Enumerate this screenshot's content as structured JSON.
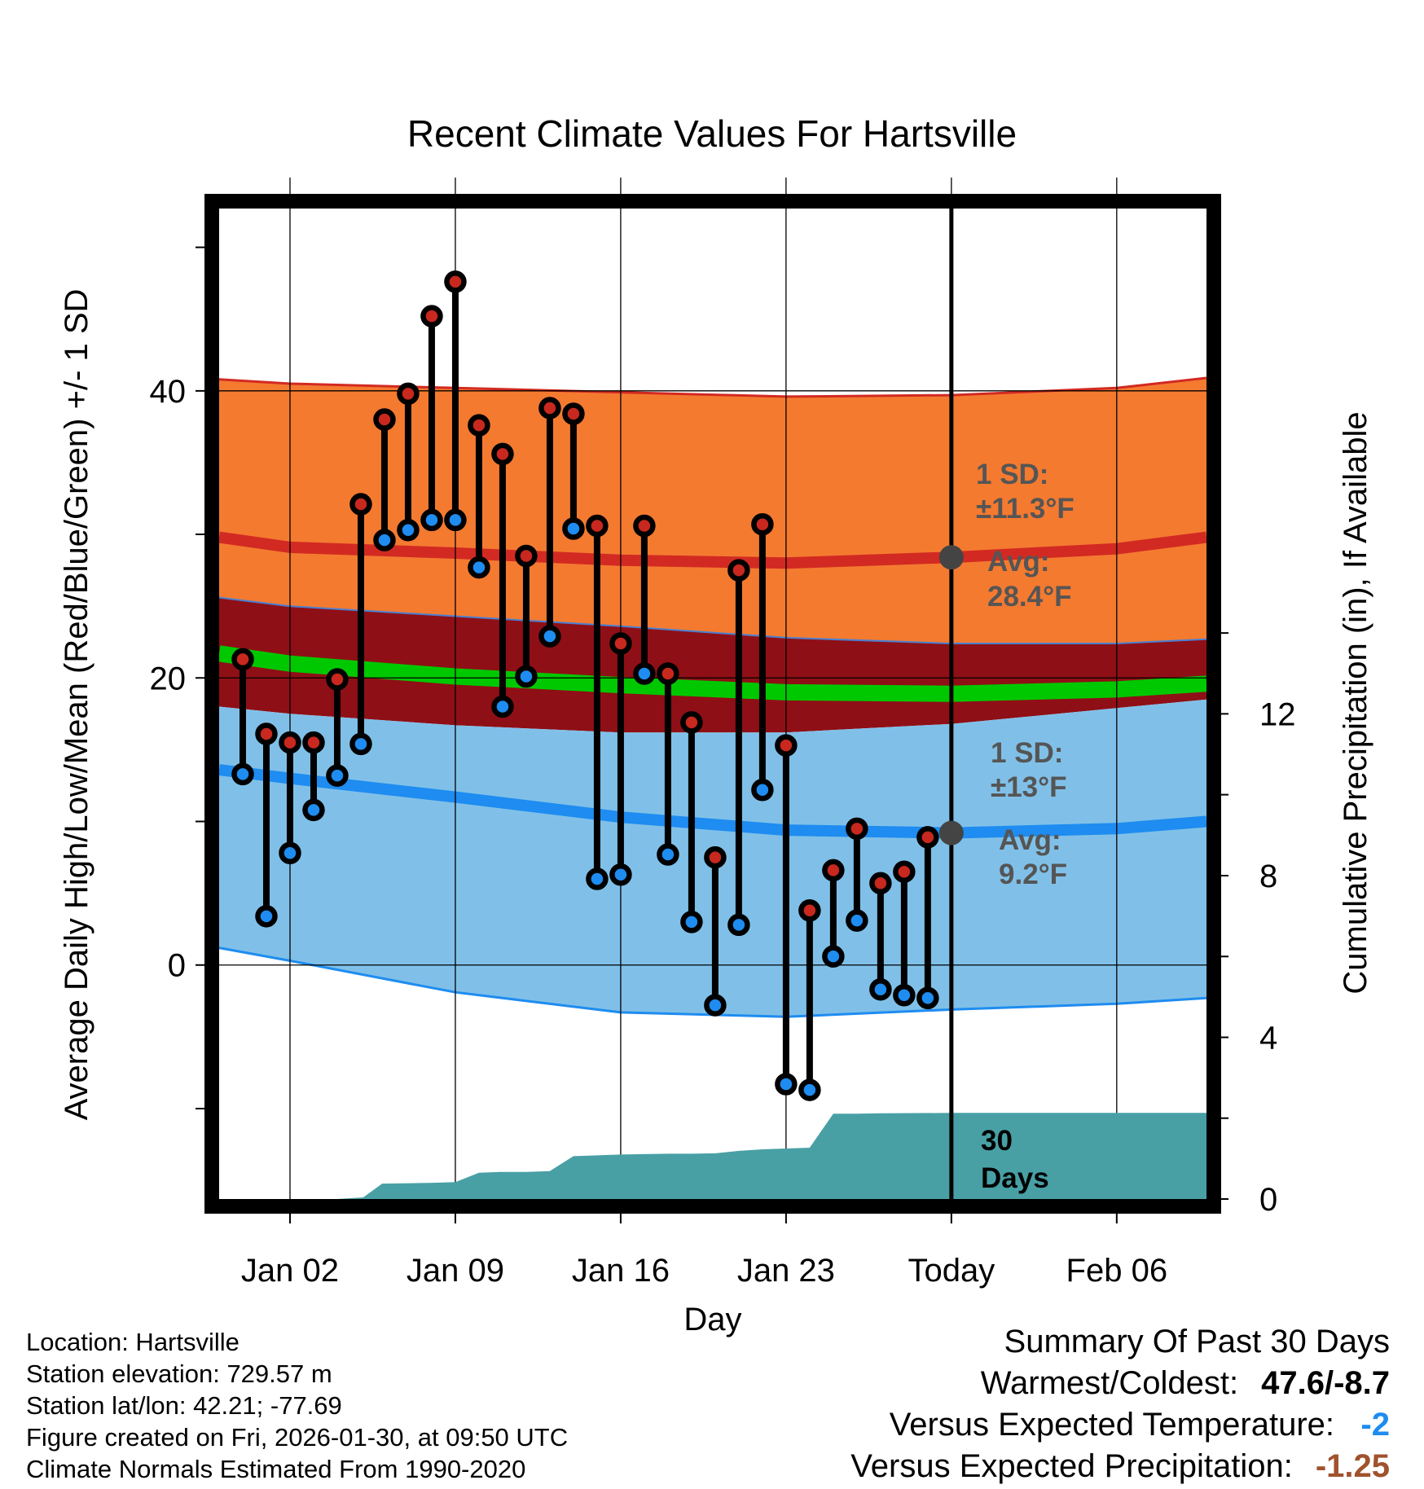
{
  "chart_data": {
    "type": "line",
    "title": "Recent Climate Values For Hartsville",
    "xlabel": "Day",
    "ylabel": "Average Daily High/Low/Mean (Red/Blue/Green) +/- 1 SD",
    "y2label": "Cumulative Precipitation (in), If Available",
    "x_range_days": [
      -1.0,
      40.8
    ],
    "ylim": [
      -16.3,
      52.7
    ],
    "y2lim": [
      0,
      24.5
    ],
    "y_ticks": [
      0,
      20,
      40
    ],
    "y2_ticks": [
      0,
      4,
      8,
      12
    ],
    "x_ticks": [
      {
        "day": 2,
        "label": "Jan 02"
      },
      {
        "day": 9,
        "label": "Jan 09"
      },
      {
        "day": 16,
        "label": "Jan 16"
      },
      {
        "day": 23,
        "label": "Jan 23"
      },
      {
        "day": 30,
        "label": "Today"
      },
      {
        "day": 37,
        "label": "Feb 06"
      }
    ],
    "today_day": 30,
    "normals": {
      "days": [
        -1.0,
        2,
        9,
        16,
        23,
        30,
        37,
        40.8
      ],
      "high_plus_sd": [
        40.8,
        40.5,
        40.2,
        39.9,
        39.6,
        39.7,
        40.2,
        40.9
      ],
      "high_avg": [
        29.8,
        29.1,
        28.7,
        28.2,
        28.0,
        28.4,
        29.0,
        29.8
      ],
      "high_minus_sd": [
        25.6,
        25.0,
        24.3,
        23.6,
        22.8,
        22.4,
        22.4,
        22.7
      ],
      "mean_avg": [
        21.7,
        21.0,
        20.1,
        19.5,
        19.0,
        18.9,
        19.2,
        19.6
      ],
      "low_plus_sd": [
        18.0,
        17.5,
        16.7,
        16.2,
        16.2,
        16.8,
        17.9,
        18.5
      ],
      "low_avg": [
        13.6,
        13.0,
        11.7,
        10.3,
        9.4,
        9.2,
        9.5,
        10.0
      ],
      "low_minus_sd": [
        1.2,
        0.3,
        -1.9,
        -3.3,
        -3.6,
        -3.1,
        -2.7,
        -2.3
      ]
    },
    "series": [
      {
        "name": "Daily High",
        "color": "#c8281e",
        "x": [
          0,
          1,
          2,
          3,
          4,
          5,
          6,
          7,
          8,
          9,
          10,
          11,
          12,
          13,
          14,
          15,
          16,
          17,
          18,
          19,
          20,
          21,
          22,
          23,
          24,
          25,
          26,
          27,
          28,
          29
        ],
        "values": [
          21.3,
          16.1,
          15.5,
          15.5,
          19.9,
          32.1,
          38.0,
          39.8,
          45.2,
          47.6,
          37.6,
          35.6,
          28.5,
          38.8,
          38.4,
          30.6,
          22.4,
          30.6,
          20.3,
          16.9,
          7.5,
          27.5,
          30.7,
          15.3,
          3.8,
          6.6,
          9.5,
          5.7,
          6.5,
          8.9
        ]
      },
      {
        "name": "Daily Low",
        "color": "#1e8cf0",
        "x": [
          0,
          1,
          2,
          3,
          4,
          5,
          6,
          7,
          8,
          9,
          10,
          11,
          12,
          13,
          14,
          15,
          16,
          17,
          18,
          19,
          20,
          21,
          22,
          23,
          24,
          25,
          26,
          27,
          28,
          29
        ],
        "values": [
          13.3,
          3.4,
          7.8,
          10.8,
          13.2,
          15.4,
          29.6,
          30.3,
          31.0,
          31.0,
          27.7,
          18.0,
          20.1,
          22.9,
          30.4,
          6.0,
          6.3,
          20.3,
          7.7,
          3.0,
          -2.8,
          2.8,
          12.2,
          -8.3,
          -8.7,
          0.6,
          3.1,
          -1.7,
          -2.1,
          -2.3
        ]
      },
      {
        "name": "Cumulative Precipitation (in)",
        "color": "#48a0a5",
        "x": [
          -1.0,
          2.5,
          3.0,
          4.0,
          5.1,
          5.9,
          8.0,
          9.0,
          10.0,
          10.9,
          12.0,
          13.0,
          14.0,
          15.0,
          16.0,
          17.0,
          18.0,
          19.0,
          20.0,
          21.0,
          22.0,
          23.0,
          24.0,
          25.0,
          26.0,
          27.0,
          30.0,
          40.8
        ],
        "values": [
          0,
          0,
          0,
          0,
          0.04,
          0.38,
          0.4,
          0.42,
          0.65,
          0.67,
          0.67,
          0.69,
          1.06,
          1.08,
          1.1,
          1.11,
          1.12,
          1.12,
          1.13,
          1.19,
          1.23,
          1.25,
          1.27,
          2.11,
          2.11,
          2.12,
          2.13,
          2.13
        ]
      }
    ],
    "annotations": {
      "high_sd_label": "1 SD:",
      "high_sd_value": "±11.3°F",
      "high_avg_label": "Avg:",
      "high_avg_value": "28.4°F",
      "low_sd_label": "1 SD:",
      "low_sd_value": "±13°F",
      "low_avg_label": "Avg:",
      "low_avg_value": "9.2°F",
      "high_avg_point": 28.4,
      "low_avg_point": 9.2,
      "days_label_1": "30",
      "days_label_2": "Days"
    },
    "colors": {
      "high_band": "#f47a30",
      "high_line": "#d22a22",
      "overlap_band": "#8f0f16",
      "mean_line": "#00c800",
      "low_band": "#80c0e8",
      "low_line": "#1e8cf0",
      "low_edge": "#1e8cf0",
      "precip_fill": "#48a0a5",
      "avg_marker": "#444444"
    }
  },
  "footer": {
    "location": "Location: Hartsville",
    "elevation": "Station elevation: 729.57 m",
    "latlon": "Station lat/lon: 42.21; -77.69",
    "created": "Figure created on Fri, 2026-01-30, at 09:50 UTC",
    "normals": "Climate Normals Estimated From 1990-2020"
  },
  "summary": {
    "heading": "Summary Of Past 30 Days",
    "warmest_label": "Warmest/Coldest:",
    "warmest_value": "47.6/-8.7",
    "temp_label": "Versus Expected Temperature:",
    "temp_value": "-2",
    "temp_color": "#1e8cf0",
    "precip_label": "Versus Expected Precipitation:",
    "precip_value": "-1.25",
    "precip_color": "#a0522d"
  }
}
